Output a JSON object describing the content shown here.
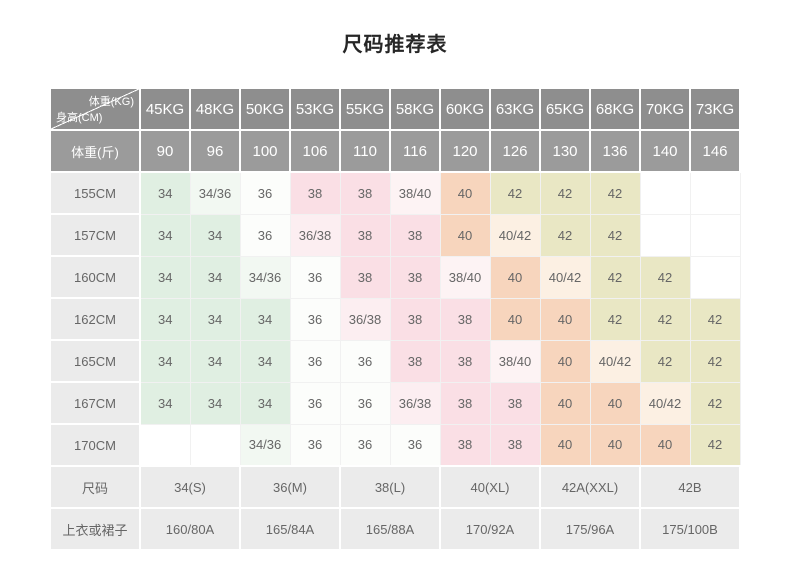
{
  "title": "尺码推荐表",
  "colors": {
    "header_bg_row1": "#8e8e8e",
    "header_bg_row2": "#9b9b9b",
    "header_text": "#ffffff",
    "row_header_bg": "#ebebeb",
    "footer_bg": "#ebebeb",
    "body_text": "#666666",
    "value_colors": {
      "34": "#e0efe2",
      "34/36": "#f2f8f2",
      "36": "#fcfdfb",
      "36/38": "#fceef1",
      "38": "#fadfe5",
      "38/40": "#fdf3f4",
      "40": "#f7d5bd",
      "40/42": "#fcf0e3",
      "42": "#e9e7c4",
      "": "#ffffff"
    }
  },
  "chart_data": {
    "type": "table",
    "title": "尺码推荐表",
    "corner": {
      "top": "体重(KG)",
      "bottom": "身高(CM)"
    },
    "weight_kg": [
      "45KG",
      "48KG",
      "50KG",
      "53KG",
      "55KG",
      "58KG",
      "60KG",
      "63KG",
      "65KG",
      "68KG",
      "70KG",
      "73KG"
    ],
    "weight_jin_label": "体重(斤)",
    "weight_jin": [
      "90",
      "96",
      "100",
      "106",
      "110",
      "116",
      "120",
      "126",
      "130",
      "136",
      "140",
      "146"
    ],
    "rows": [
      {
        "height": "155CM",
        "cells": [
          "34",
          "34/36",
          "36",
          "38",
          "38",
          "38/40",
          "40",
          "42",
          "42",
          "42",
          "",
          ""
        ]
      },
      {
        "height": "157CM",
        "cells": [
          "34",
          "34",
          "36",
          "36/38",
          "38",
          "38",
          "40",
          "40/42",
          "42",
          "42",
          "",
          ""
        ]
      },
      {
        "height": "160CM",
        "cells": [
          "34",
          "34",
          "34/36",
          "36",
          "38",
          "38",
          "38/40",
          "40",
          "40/42",
          "42",
          "42",
          ""
        ]
      },
      {
        "height": "162CM",
        "cells": [
          "34",
          "34",
          "34",
          "36",
          "36/38",
          "38",
          "38",
          "40",
          "40",
          "42",
          "42",
          "42"
        ]
      },
      {
        "height": "165CM",
        "cells": [
          "34",
          "34",
          "34",
          "36",
          "36",
          "38",
          "38",
          "38/40",
          "40",
          "40/42",
          "42",
          "42"
        ]
      },
      {
        "height": "167CM",
        "cells": [
          "34",
          "34",
          "34",
          "36",
          "36",
          "36/38",
          "38",
          "38",
          "40",
          "40",
          "40/42",
          "42"
        ]
      },
      {
        "height": "170CM",
        "cells": [
          "",
          "",
          "34/36",
          "36",
          "36",
          "36",
          "38",
          "38",
          "40",
          "40",
          "40",
          "42"
        ]
      }
    ],
    "size_row": {
      "label": "尺码",
      "values": [
        "34(S)",
        "36(M)",
        "38(L)",
        "40(XL)",
        "42A(XXL)",
        "42B"
      ]
    },
    "garment_row": {
      "label": "上衣或裙子",
      "values": [
        "160/80A",
        "165/84A",
        "165/88A",
        "170/92A",
        "175/96A",
        "175/100B"
      ]
    }
  }
}
